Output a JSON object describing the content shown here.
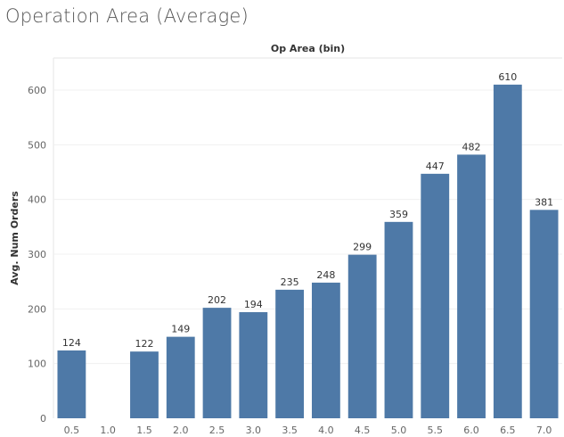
{
  "title": "Operation Area (Average)",
  "chart_data": {
    "type": "bar",
    "title": "Operation Area (Average)",
    "xlabel": "Op Area (bin)",
    "ylabel": "Avg. Num Orders",
    "categories": [
      "0.5",
      "1.0",
      "1.5",
      "2.0",
      "2.5",
      "3.0",
      "3.5",
      "4.0",
      "4.5",
      "5.0",
      "5.5",
      "6.0",
      "6.5",
      "7.0"
    ],
    "values": [
      124,
      null,
      122,
      149,
      202,
      194,
      235,
      248,
      299,
      359,
      447,
      482,
      610,
      381
    ],
    "data_labels": [
      "124",
      "",
      "122",
      "149",
      "202",
      "194",
      "235",
      "248",
      "299",
      "359",
      "447",
      "482",
      "610",
      "381"
    ],
    "yticks": [
      "0",
      "100",
      "200",
      "300",
      "400",
      "500",
      "600"
    ],
    "ylim": [
      0,
      640
    ],
    "grid": true,
    "bar_color": "#4e79a7",
    "x_axis_position": "top"
  }
}
